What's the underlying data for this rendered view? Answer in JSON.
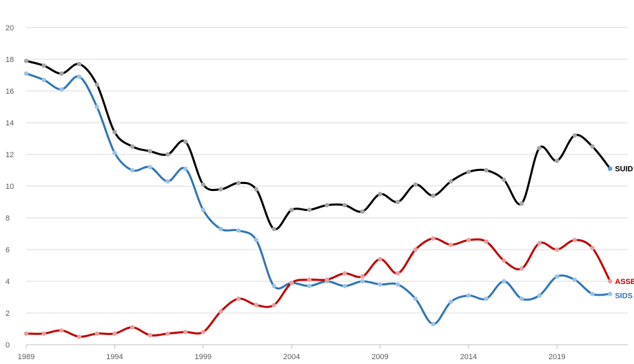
{
  "chart_data": {
    "type": "line",
    "title": "",
    "xlabel": "",
    "ylabel": "",
    "x": [
      1989,
      1990,
      1991,
      1992,
      1993,
      1994,
      1995,
      1996,
      1997,
      1998,
      1999,
      2000,
      2001,
      2002,
      2003,
      2004,
      2005,
      2006,
      2007,
      2008,
      2009,
      2010,
      2011,
      2012,
      2013,
      2014,
      2015,
      2016,
      2017,
      2018,
      2019,
      2020,
      2021,
      2022
    ],
    "xlim": [
      1989,
      2023
    ],
    "ylim": [
      0,
      20
    ],
    "x_ticks": [
      1989,
      1994,
      1999,
      2004,
      2009,
      2014,
      2019
    ],
    "y_ticks": [
      0,
      2,
      4,
      6,
      8,
      10,
      12,
      14,
      16,
      18,
      20
    ],
    "grid": true,
    "legend": "inline labels at line ends",
    "series": [
      {
        "name": "SUID",
        "color": "#000000",
        "marker_color": "#a6a6a6",
        "end_marker_color": "#5b9bd5",
        "label_color": "#000000",
        "values": [
          17.9,
          17.6,
          17.1,
          17.7,
          16.4,
          13.4,
          12.5,
          12.2,
          12.0,
          12.8,
          10.1,
          9.8,
          10.2,
          9.8,
          7.3,
          8.5,
          8.5,
          8.8,
          8.8,
          8.4,
          9.5,
          9.0,
          10.1,
          9.4,
          10.3,
          10.9,
          11.0,
          10.4,
          8.9,
          12.4,
          11.6,
          13.2,
          12.5,
          11.1
        ]
      },
      {
        "name": "SIDS",
        "color": "#2e75b6",
        "marker_color": "#9dc3e6",
        "end_marker_color": "#9dc3e6",
        "label_color": "#2e75b6",
        "values": [
          17.1,
          16.7,
          16.1,
          16.9,
          15.0,
          12.1,
          11.0,
          11.2,
          10.3,
          11.1,
          8.5,
          7.3,
          7.2,
          6.6,
          3.7,
          3.9,
          3.7,
          4.0,
          3.7,
          4.0,
          3.8,
          3.8,
          2.9,
          1.3,
          2.7,
          3.1,
          2.9,
          4.0,
          2.9,
          3.1,
          4.3,
          4.1,
          3.2,
          3.2
        ]
      },
      {
        "name": "ASSB",
        "color": "#c00000",
        "marker_color": "#e6a0a0",
        "end_marker_color": "#e6a0a0",
        "label_color": "#c00000",
        "values": [
          0.7,
          0.7,
          0.9,
          0.5,
          0.7,
          0.7,
          1.1,
          0.6,
          0.7,
          0.8,
          0.8,
          2.1,
          2.9,
          2.5,
          2.5,
          3.9,
          4.1,
          4.1,
          4.5,
          4.3,
          5.4,
          4.5,
          6.0,
          6.7,
          6.3,
          6.6,
          6.5,
          5.3,
          4.8,
          6.4,
          6.0,
          6.6,
          6.1,
          4.0
        ]
      }
    ]
  }
}
